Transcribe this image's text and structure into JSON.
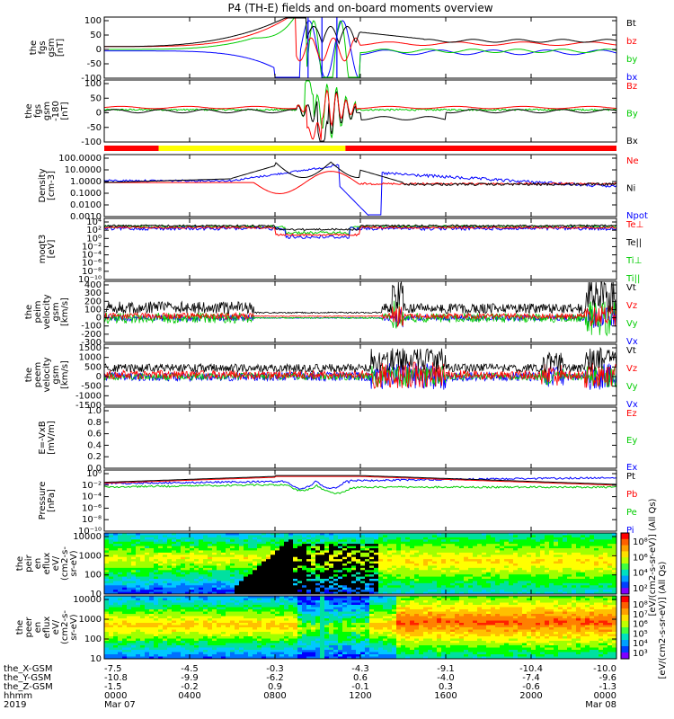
{
  "chart_data": {
    "type": "line",
    "title": "P4 (TH-E) fields and on-board moments overview",
    "panels": [
      {
        "id": "fgs",
        "ylabel": [
          "the",
          "fgs",
          "gsm",
          "[nT]"
        ],
        "yticks": [
          "100",
          "50",
          "0",
          "-50",
          "-100"
        ],
        "ylim": [
          -100,
          100
        ],
        "legend": [
          {
            "label": "Bt",
            "color": "#000000"
          },
          {
            "label": "bz",
            "color": "#ff0000"
          },
          {
            "label": "by",
            "color": "#00cc00"
          },
          {
            "label": "bx",
            "color": "#0000ff"
          }
        ]
      },
      {
        "id": "fgs-dsl",
        "ylabel": [
          "the",
          "fgs",
          "gsm",
          "-180",
          "[nT]"
        ],
        "yticks": [
          "100",
          "50",
          "0",
          "-50",
          "-100"
        ],
        "ylim": [
          -120,
          100
        ],
        "legend": [
          {
            "label": "Bz",
            "color": "#ff0000"
          },
          {
            "label": "By",
            "color": "#00cc00"
          },
          {
            "label": "Bx",
            "color": "#000000"
          }
        ]
      },
      {
        "id": "density",
        "ylabel": [
          "Density",
          "[cm-3]"
        ],
        "yticks": [
          "100.0000",
          "10.0000",
          "1.0000",
          "0.1000",
          "0.0100",
          "0.0010"
        ],
        "scale": "log",
        "legend": [
          {
            "label": "Ne",
            "color": "#ff0000"
          },
          {
            "label": "Ni",
            "color": "#000000"
          },
          {
            "label": "Npot",
            "color": "#0000ff"
          }
        ]
      },
      {
        "id": "temperature",
        "ylabel": [
          "moqt3",
          "[eV]"
        ],
        "yticks": [
          "10⁴",
          "10²",
          "10⁰",
          "10⁻²",
          "10⁻⁴",
          "10⁻⁶",
          "10⁻⁸",
          "10⁻¹⁰"
        ],
        "scale": "log",
        "legend": [
          {
            "label": "Te⊥",
            "color": "#ff0000"
          },
          {
            "label": "Te||",
            "color": "#000000"
          },
          {
            "label": "Ti⊥",
            "color": "#00cc00"
          },
          {
            "label": "Ti||",
            "color": "#00cc00"
          }
        ]
      },
      {
        "id": "peim-velocity",
        "ylabel": [
          "the",
          "peim",
          "velocity",
          "gsm",
          "[km/s]"
        ],
        "yticks": [
          "400",
          "300",
          "200",
          "100",
          "0",
          "-100",
          "-200",
          "-300"
        ],
        "ylim": [
          -300,
          400
        ],
        "legend": [
          {
            "label": "Vt",
            "color": "#000000"
          },
          {
            "label": "Vz",
            "color": "#ff0000"
          },
          {
            "label": "Vy",
            "color": "#00cc00"
          },
          {
            "label": "Vx",
            "color": "#0000ff"
          }
        ]
      },
      {
        "id": "peem-velocity",
        "ylabel": [
          "the",
          "peem",
          "velocity",
          "gsm",
          "[km/s]"
        ],
        "yticks": [
          "1500",
          "1000",
          "500",
          "0",
          "-500",
          "-1000",
          "-1500"
        ],
        "ylim": [
          -1500,
          1500
        ],
        "legend": [
          {
            "label": "Vt",
            "color": "#000000"
          },
          {
            "label": "Vz",
            "color": "#ff0000"
          },
          {
            "label": "Vy",
            "color": "#00cc00"
          },
          {
            "label": "Vx",
            "color": "#0000ff"
          }
        ]
      },
      {
        "id": "efield",
        "ylabel": [
          "E=-VxB",
          "[mV/m]"
        ],
        "yticks": [
          "1.0",
          "0.8",
          "0.6",
          "0.4",
          "0.2",
          "0.0"
        ],
        "ylim": [
          0,
          1
        ],
        "legend": [
          {
            "label": "Ez",
            "color": "#ff0000"
          },
          {
            "label": "Ey",
            "color": "#00cc00"
          },
          {
            "label": "Ex",
            "color": "#0000ff"
          }
        ]
      },
      {
        "id": "pressure",
        "ylabel": [
          "Pressure",
          "[nPa]"
        ],
        "yticks": [
          "10⁰",
          "10⁻²",
          "10⁻⁴",
          "10⁻⁶",
          "10⁻⁸",
          "10⁻¹⁰"
        ],
        "scale": "log",
        "legend": [
          {
            "label": "Pt",
            "color": "#000000"
          },
          {
            "label": "Pb",
            "color": "#ff0000"
          },
          {
            "label": "Pe",
            "color": "#00cc00"
          },
          {
            "label": "Pi",
            "color": "#0000ff"
          }
        ]
      },
      {
        "id": "peir-spectrogram",
        "ylabel": [
          "the",
          "peir",
          "en",
          "eflux",
          "eV/",
          "(cm2-s-",
          "sr-eV)"
        ],
        "yticks": [
          "10000",
          "1000",
          "100",
          "10"
        ],
        "scale": "log",
        "colorbar_ticks": [
          "10⁸",
          "10⁶",
          "10⁴",
          "10²"
        ]
      },
      {
        "id": "peer-spectrogram",
        "ylabel": [
          "the",
          "peer",
          "en",
          "eflux",
          "eV/",
          "(cm2-s-",
          "sr-eV)"
        ],
        "yticks": [
          "10000",
          "1000",
          "100",
          "10"
        ],
        "scale": "log",
        "colorbar_ticks": [
          "10⁸",
          "10⁷",
          "10⁶",
          "10⁵",
          "10⁴",
          "10³"
        ]
      }
    ],
    "colorbar_label": "[eV/(cm2-s-sr-eV)] (All Qs)",
    "colorbar_label_extra": "[eV/(cm2-s-sr-eV)] (All Qs)",
    "xaxis": {
      "rows": [
        {
          "label": "the_X-GSM",
          "values": [
            "-7.5",
            "-4.5",
            "-0.3",
            "-4.3",
            "-9.1",
            "-10.4",
            "-10.0"
          ]
        },
        {
          "label": "the_Y-GSM",
          "values": [
            "-10.8",
            "-9.9",
            "-6.2",
            "0.6",
            "-4.0",
            "-7.4",
            "-9.6"
          ]
        },
        {
          "label": "the_Z-GSM",
          "values": [
            "-1.5",
            "-0.2",
            "0.9",
            "-0.1",
            "0.3",
            "-0.6",
            "-1.3"
          ]
        },
        {
          "label": "hhmm",
          "values": [
            "0000",
            "0400",
            "0800",
            "1200",
            "1600",
            "2000",
            "0000"
          ]
        },
        {
          "label": "2019",
          "values": [
            "Mar 07",
            "",
            "",
            "",
            "",
            "",
            "Mar 08"
          ]
        }
      ],
      "xlim": [
        0,
        24
      ],
      "tick_hours": [
        0,
        4,
        8,
        12,
        16,
        20,
        24
      ]
    },
    "mode_bar": {
      "segments": [
        {
          "from_hour": 0.0,
          "to_hour": 2.55,
          "color": "#ff0000"
        },
        {
          "from_hour": 2.55,
          "to_hour": 11.3,
          "color": "#ffff00"
        },
        {
          "from_hour": 11.3,
          "to_hour": 24.0,
          "color": "#ff0000"
        }
      ]
    }
  }
}
